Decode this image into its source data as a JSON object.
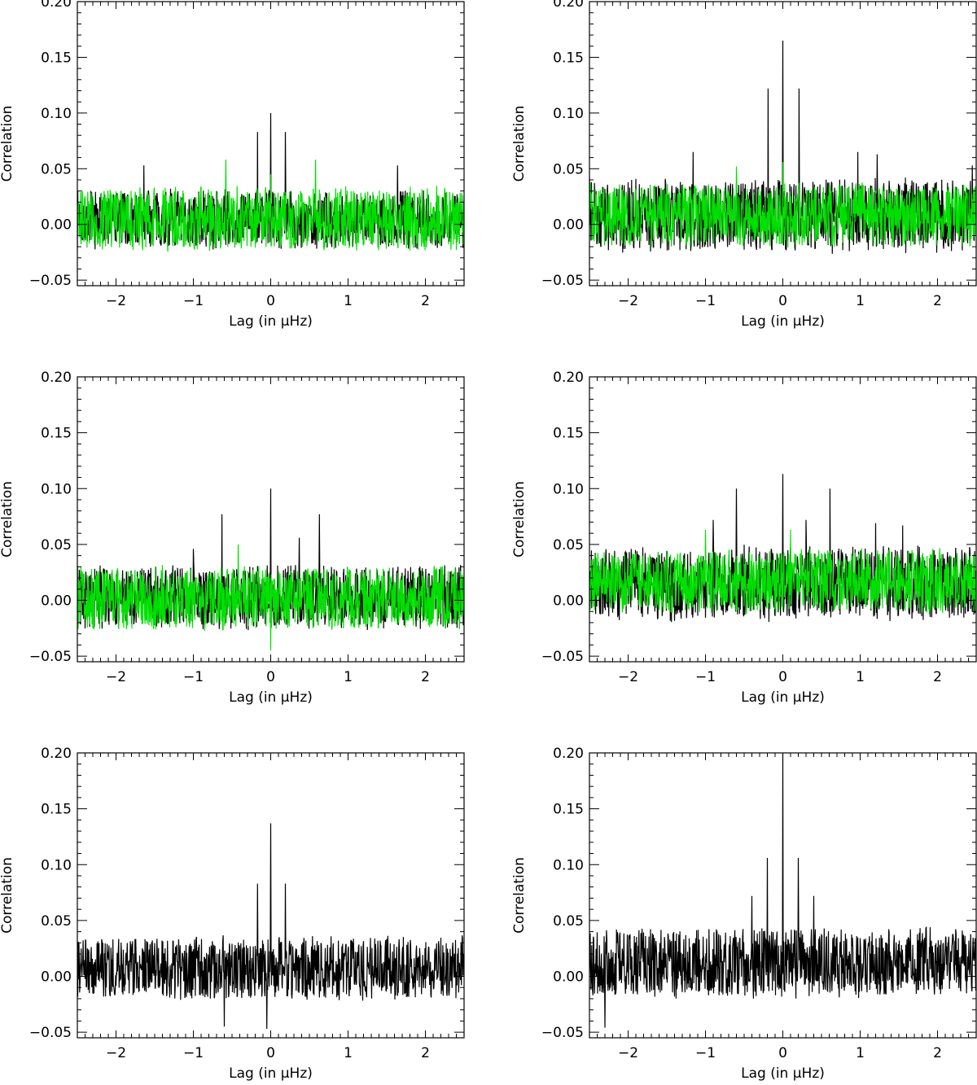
{
  "figure": {
    "panel_count": 6,
    "layout": "3 rows x 2 columns",
    "series_colors": {
      "black": "#000000",
      "green": "#00e000"
    }
  },
  "chart_data": [
    {
      "type": "line",
      "panel": "row-1-left",
      "xlabel": "Lag (in μHz)",
      "ylabel": "Correlation",
      "xlim": [
        -2.5,
        2.5
      ],
      "ylim": [
        -0.055,
        0.2
      ],
      "xticks": [
        -2,
        -1,
        0,
        1,
        2
      ],
      "xtick_labels": [
        "−2",
        "−1",
        "0",
        "1",
        "2"
      ],
      "yticks": [
        -0.05,
        0.0,
        0.05,
        0.1,
        0.15,
        0.2
      ],
      "ytick_labels": [
        "−0.05",
        "0.00",
        "0.05",
        "0.10",
        "0.15",
        "0.20"
      ],
      "noise_step": 0.005,
      "series": [
        {
          "color": "#000000",
          "baseline": 0.005,
          "noise_amplitude": 0.028,
          "peaks": [
            {
              "x": -0.17,
              "y": 0.083
            },
            {
              "x": 0.0,
              "y": 0.1
            },
            {
              "x": 0.19,
              "y": 0.083
            },
            {
              "x": -1.64,
              "y": 0.053
            },
            {
              "x": 1.64,
              "y": 0.053
            }
          ]
        },
        {
          "color": "#00e000",
          "baseline": 0.005,
          "noise_amplitude": 0.03,
          "peaks": [
            {
              "x": -0.58,
              "y": 0.058
            },
            {
              "x": 0.58,
              "y": 0.058
            },
            {
              "x": 0.0,
              "y": 0.045
            }
          ]
        }
      ]
    },
    {
      "type": "line",
      "panel": "row-1-right",
      "xlabel": "Lag (in μHz)",
      "ylabel": "Correlation",
      "xlim": [
        -2.5,
        2.5
      ],
      "ylim": [
        -0.055,
        0.2
      ],
      "xticks": [
        -2,
        -1,
        0,
        1,
        2
      ],
      "xtick_labels": [
        "−2",
        "−1",
        "0",
        "1",
        "2"
      ],
      "yticks": [
        -0.05,
        0.0,
        0.05,
        0.1,
        0.15,
        0.2
      ],
      "ytick_labels": [
        "−0.05",
        "0.00",
        "0.05",
        "0.10",
        "0.15",
        "0.20"
      ],
      "noise_step": 0.005,
      "series": [
        {
          "color": "#000000",
          "baseline": 0.008,
          "noise_amplitude": 0.035,
          "peaks": [
            {
              "x": -0.19,
              "y": 0.122
            },
            {
              "x": 0.0,
              "y": 0.165
            },
            {
              "x": 0.21,
              "y": 0.122
            },
            {
              "x": -1.16,
              "y": 0.065
            },
            {
              "x": 0.97,
              "y": 0.065
            },
            {
              "x": 1.22,
              "y": 0.063
            },
            {
              "x": 2.45,
              "y": 0.053
            }
          ]
        },
        {
          "color": "#00e000",
          "baseline": 0.008,
          "noise_amplitude": 0.03,
          "peaks": [
            {
              "x": 0.0,
              "y": 0.056
            },
            {
              "x": -0.6,
              "y": 0.052
            }
          ]
        }
      ]
    },
    {
      "type": "line",
      "panel": "row-2-left",
      "xlabel": "Lag (in μHz)",
      "ylabel": "Correlation",
      "xlim": [
        -2.5,
        2.5
      ],
      "ylim": [
        -0.055,
        0.2
      ],
      "xticks": [
        -2,
        -1,
        0,
        1,
        2
      ],
      "xtick_labels": [
        "−2",
        "−1",
        "0",
        "1",
        "2"
      ],
      "yticks": [
        -0.05,
        0.0,
        0.05,
        0.1,
        0.15,
        0.2
      ],
      "ytick_labels": [
        "−0.05",
        "0.00",
        "0.05",
        "0.10",
        "0.15",
        "0.20"
      ],
      "noise_step": 0.005,
      "series": [
        {
          "color": "#000000",
          "baseline": 0.003,
          "noise_amplitude": 0.03,
          "peaks": [
            {
              "x": -0.63,
              "y": 0.077
            },
            {
              "x": 0.0,
              "y": 0.1
            },
            {
              "x": 0.63,
              "y": 0.077
            },
            {
              "x": 0.37,
              "y": 0.056
            },
            {
              "x": -1.0,
              "y": 0.046
            }
          ]
        },
        {
          "color": "#00e000",
          "baseline": 0.002,
          "noise_amplitude": 0.03,
          "peaks": [
            {
              "x": -0.42,
              "y": 0.05
            },
            {
              "x": 0.0,
              "y": -0.045
            }
          ]
        }
      ]
    },
    {
      "type": "line",
      "panel": "row-2-right",
      "xlabel": "Lag (in μHz)",
      "ylabel": "Correlation",
      "xlim": [
        -2.5,
        2.5
      ],
      "ylim": [
        -0.055,
        0.2
      ],
      "xticks": [
        -2,
        -1,
        0,
        1,
        2
      ],
      "xtick_labels": [
        "−2",
        "−1",
        "0",
        "1",
        "2"
      ],
      "yticks": [
        -0.05,
        0.0,
        0.05,
        0.1,
        0.15,
        0.2
      ],
      "ytick_labels": [
        "−0.05",
        "0.00",
        "0.05",
        "0.10",
        "0.15",
        "0.20"
      ],
      "noise_step": 0.005,
      "series": [
        {
          "color": "#000000",
          "baseline": 0.015,
          "noise_amplitude": 0.035,
          "peaks": [
            {
              "x": -0.6,
              "y": 0.1
            },
            {
              "x": 0.0,
              "y": 0.113
            },
            {
              "x": 0.61,
              "y": 0.1
            },
            {
              "x": -0.9,
              "y": 0.072
            },
            {
              "x": 0.3,
              "y": 0.072
            },
            {
              "x": 1.2,
              "y": 0.069
            },
            {
              "x": 1.55,
              "y": 0.067
            }
          ]
        },
        {
          "color": "#00e000",
          "baseline": 0.017,
          "noise_amplitude": 0.03,
          "peaks": [
            {
              "x": -1.0,
              "y": 0.063
            },
            {
              "x": 0.1,
              "y": 0.063
            }
          ]
        }
      ]
    },
    {
      "type": "line",
      "panel": "row-3-left",
      "xlabel": "Lag (in μHz)",
      "ylabel": "Correlation",
      "xlim": [
        -2.5,
        2.5
      ],
      "ylim": [
        -0.055,
        0.2
      ],
      "xticks": [
        -2,
        -1,
        0,
        1,
        2
      ],
      "xtick_labels": [
        "−2",
        "−1",
        "0",
        "1",
        "2"
      ],
      "yticks": [
        -0.05,
        0.0,
        0.05,
        0.1,
        0.15,
        0.2
      ],
      "ytick_labels": [
        "−0.05",
        "0.00",
        "0.05",
        "0.10",
        "0.15",
        "0.20"
      ],
      "noise_step": 0.005,
      "series": [
        {
          "color": "#000000",
          "baseline": 0.007,
          "noise_amplitude": 0.03,
          "peaks": [
            {
              "x": -0.17,
              "y": 0.083
            },
            {
              "x": 0.0,
              "y": 0.137
            },
            {
              "x": 0.19,
              "y": 0.083
            },
            {
              "x": -0.05,
              "y": -0.047
            },
            {
              "x": -0.6,
              "y": -0.045
            }
          ]
        }
      ]
    },
    {
      "type": "line",
      "panel": "row-3-right",
      "xlabel": "Lag (in μHz)",
      "ylabel": "Correlation",
      "xlim": [
        -2.5,
        2.5
      ],
      "ylim": [
        -0.055,
        0.2
      ],
      "xticks": [
        -2,
        -1,
        0,
        1,
        2
      ],
      "xtick_labels": [
        "−2",
        "−1",
        "0",
        "1",
        "2"
      ],
      "yticks": [
        -0.05,
        0.0,
        0.05,
        0.1,
        0.15,
        0.2
      ],
      "ytick_labels": [
        "−0.05",
        "0.00",
        "0.05",
        "0.10",
        "0.15",
        "0.20"
      ],
      "noise_step": 0.005,
      "series": [
        {
          "color": "#000000",
          "baseline": 0.012,
          "noise_amplitude": 0.033,
          "peaks": [
            {
              "x": -0.2,
              "y": 0.106
            },
            {
              "x": 0.0,
              "y": 0.2
            },
            {
              "x": 0.2,
              "y": 0.106
            },
            {
              "x": -0.4,
              "y": 0.072
            },
            {
              "x": 0.4,
              "y": 0.072
            },
            {
              "x": -2.3,
              "y": -0.046
            }
          ]
        }
      ]
    }
  ]
}
